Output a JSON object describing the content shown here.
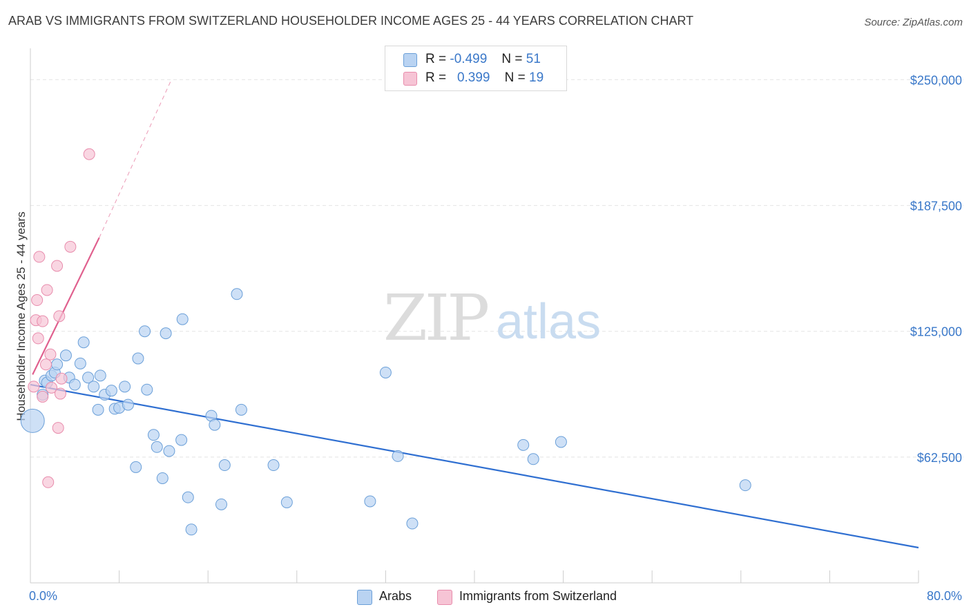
{
  "title": "ARAB VS IMMIGRANTS FROM SWITZERLAND HOUSEHOLDER INCOME AGES 25 - 44 YEARS CORRELATION CHART",
  "source": "Source: ZipAtlas.com",
  "watermark": {
    "zip": "ZIP",
    "atlas": "atlas"
  },
  "colors": {
    "blue_fill": "#b9d3f2",
    "blue_stroke": "#6a9fd8",
    "blue_line": "#2f6fd1",
    "pink_fill": "#f6c4d5",
    "pink_stroke": "#e88cac",
    "pink_line": "#e0608e",
    "axis_label": "#3a78c9",
    "grid": "#e4e4e4"
  },
  "legend": {
    "rows": [
      {
        "r_label": "R =",
        "r_value": "-0.499",
        "n_label": "N =",
        "n_value": "51"
      },
      {
        "r_label": "R =",
        "r_value": "0.399",
        "n_label": "N =",
        "n_value": "19"
      }
    ]
  },
  "bottom_legend": {
    "series_a": "Arabs",
    "series_b": "Immigrants from Switzerland"
  },
  "chart_data": {
    "type": "scatter",
    "title": "ARAB VS IMMIGRANTS FROM SWITZERLAND HOUSEHOLDER INCOME AGES 25 - 44 YEARS CORRELATION CHART",
    "ylabel": "Householder Income Ages 25 - 44 years",
    "xlabel": "",
    "xlim": [
      0,
      80
    ],
    "ylim": [
      0,
      262500
    ],
    "x_tick_labels": [
      "0.0%",
      "80.0%"
    ],
    "y_ticks": [
      62500,
      125000,
      187500,
      250000
    ],
    "y_tick_labels": [
      "$62,500",
      "$125,000",
      "$187,500",
      "$250,000"
    ],
    "grid": true,
    "series": [
      {
        "name": "Arabs",
        "r": -0.499,
        "n": 51,
        "trend": {
          "x": [
            0,
            80
          ],
          "y": [
            98500,
            17500
          ]
        },
        "points": [
          {
            "x": 0.2,
            "y": 80500,
            "big": true
          },
          {
            "x": 1.1,
            "y": 93500
          },
          {
            "x": 1.3,
            "y": 100500
          },
          {
            "x": 1.5,
            "y": 99500
          },
          {
            "x": 1.9,
            "y": 103000
          },
          {
            "x": 2.2,
            "y": 104500
          },
          {
            "x": 2.4,
            "y": 108500
          },
          {
            "x": 3.2,
            "y": 113000
          },
          {
            "x": 3.5,
            "y": 102000
          },
          {
            "x": 4.0,
            "y": 98500
          },
          {
            "x": 4.5,
            "y": 109000
          },
          {
            "x": 4.8,
            "y": 119500
          },
          {
            "x": 5.2,
            "y": 102000
          },
          {
            "x": 5.7,
            "y": 97500
          },
          {
            "x": 6.1,
            "y": 86000
          },
          {
            "x": 6.3,
            "y": 103000
          },
          {
            "x": 6.7,
            "y": 93500
          },
          {
            "x": 7.3,
            "y": 95500
          },
          {
            "x": 7.6,
            "y": 86500
          },
          {
            "x": 8.0,
            "y": 87000
          },
          {
            "x": 8.5,
            "y": 97500
          },
          {
            "x": 8.8,
            "y": 88500
          },
          {
            "x": 9.5,
            "y": 57500
          },
          {
            "x": 9.7,
            "y": 111500
          },
          {
            "x": 10.3,
            "y": 125000
          },
          {
            "x": 10.5,
            "y": 96000
          },
          {
            "x": 11.1,
            "y": 73500
          },
          {
            "x": 11.4,
            "y": 67500
          },
          {
            "x": 11.9,
            "y": 52000
          },
          {
            "x": 12.2,
            "y": 124000
          },
          {
            "x": 12.5,
            "y": 65500
          },
          {
            "x": 13.6,
            "y": 71000
          },
          {
            "x": 13.7,
            "y": 131000
          },
          {
            "x": 14.2,
            "y": 42500
          },
          {
            "x": 14.5,
            "y": 26500
          },
          {
            "x": 16.3,
            "y": 83000
          },
          {
            "x": 16.6,
            "y": 78500
          },
          {
            "x": 17.2,
            "y": 39000
          },
          {
            "x": 17.5,
            "y": 58500
          },
          {
            "x": 18.6,
            "y": 143500
          },
          {
            "x": 19.0,
            "y": 86000
          },
          {
            "x": 21.9,
            "y": 58500
          },
          {
            "x": 23.1,
            "y": 40000
          },
          {
            "x": 30.6,
            "y": 40500
          },
          {
            "x": 32.0,
            "y": 104500
          },
          {
            "x": 33.1,
            "y": 63000
          },
          {
            "x": 34.4,
            "y": 29500
          },
          {
            "x": 44.4,
            "y": 68500
          },
          {
            "x": 45.3,
            "y": 61500
          },
          {
            "x": 47.8,
            "y": 70000
          },
          {
            "x": 64.4,
            "y": 48500
          }
        ]
      },
      {
        "name": "Immigrants from Switzerland",
        "r": 0.399,
        "n": 19,
        "trend": {
          "x": [
            0.2,
            6.2
          ],
          "y": [
            103500,
            171500
          ]
        },
        "trend_dashed": {
          "x": [
            6.2,
            12.7
          ],
          "y": [
            171500,
            250000
          ]
        },
        "points": [
          {
            "x": 0.3,
            "y": 97500
          },
          {
            "x": 0.5,
            "y": 130500
          },
          {
            "x": 0.6,
            "y": 140500
          },
          {
            "x": 0.7,
            "y": 121500
          },
          {
            "x": 0.8,
            "y": 162000
          },
          {
            "x": 1.1,
            "y": 92500
          },
          {
            "x": 1.1,
            "y": 130000
          },
          {
            "x": 1.4,
            "y": 108500
          },
          {
            "x": 1.5,
            "y": 145500
          },
          {
            "x": 1.6,
            "y": 50000
          },
          {
            "x": 1.8,
            "y": 113500
          },
          {
            "x": 1.9,
            "y": 97000
          },
          {
            "x": 2.4,
            "y": 157500
          },
          {
            "x": 2.5,
            "y": 77000
          },
          {
            "x": 2.6,
            "y": 132500
          },
          {
            "x": 2.7,
            "y": 94000
          },
          {
            "x": 2.8,
            "y": 101500
          },
          {
            "x": 3.6,
            "y": 167000
          },
          {
            "x": 5.3,
            "y": 213000
          }
        ]
      }
    ]
  }
}
